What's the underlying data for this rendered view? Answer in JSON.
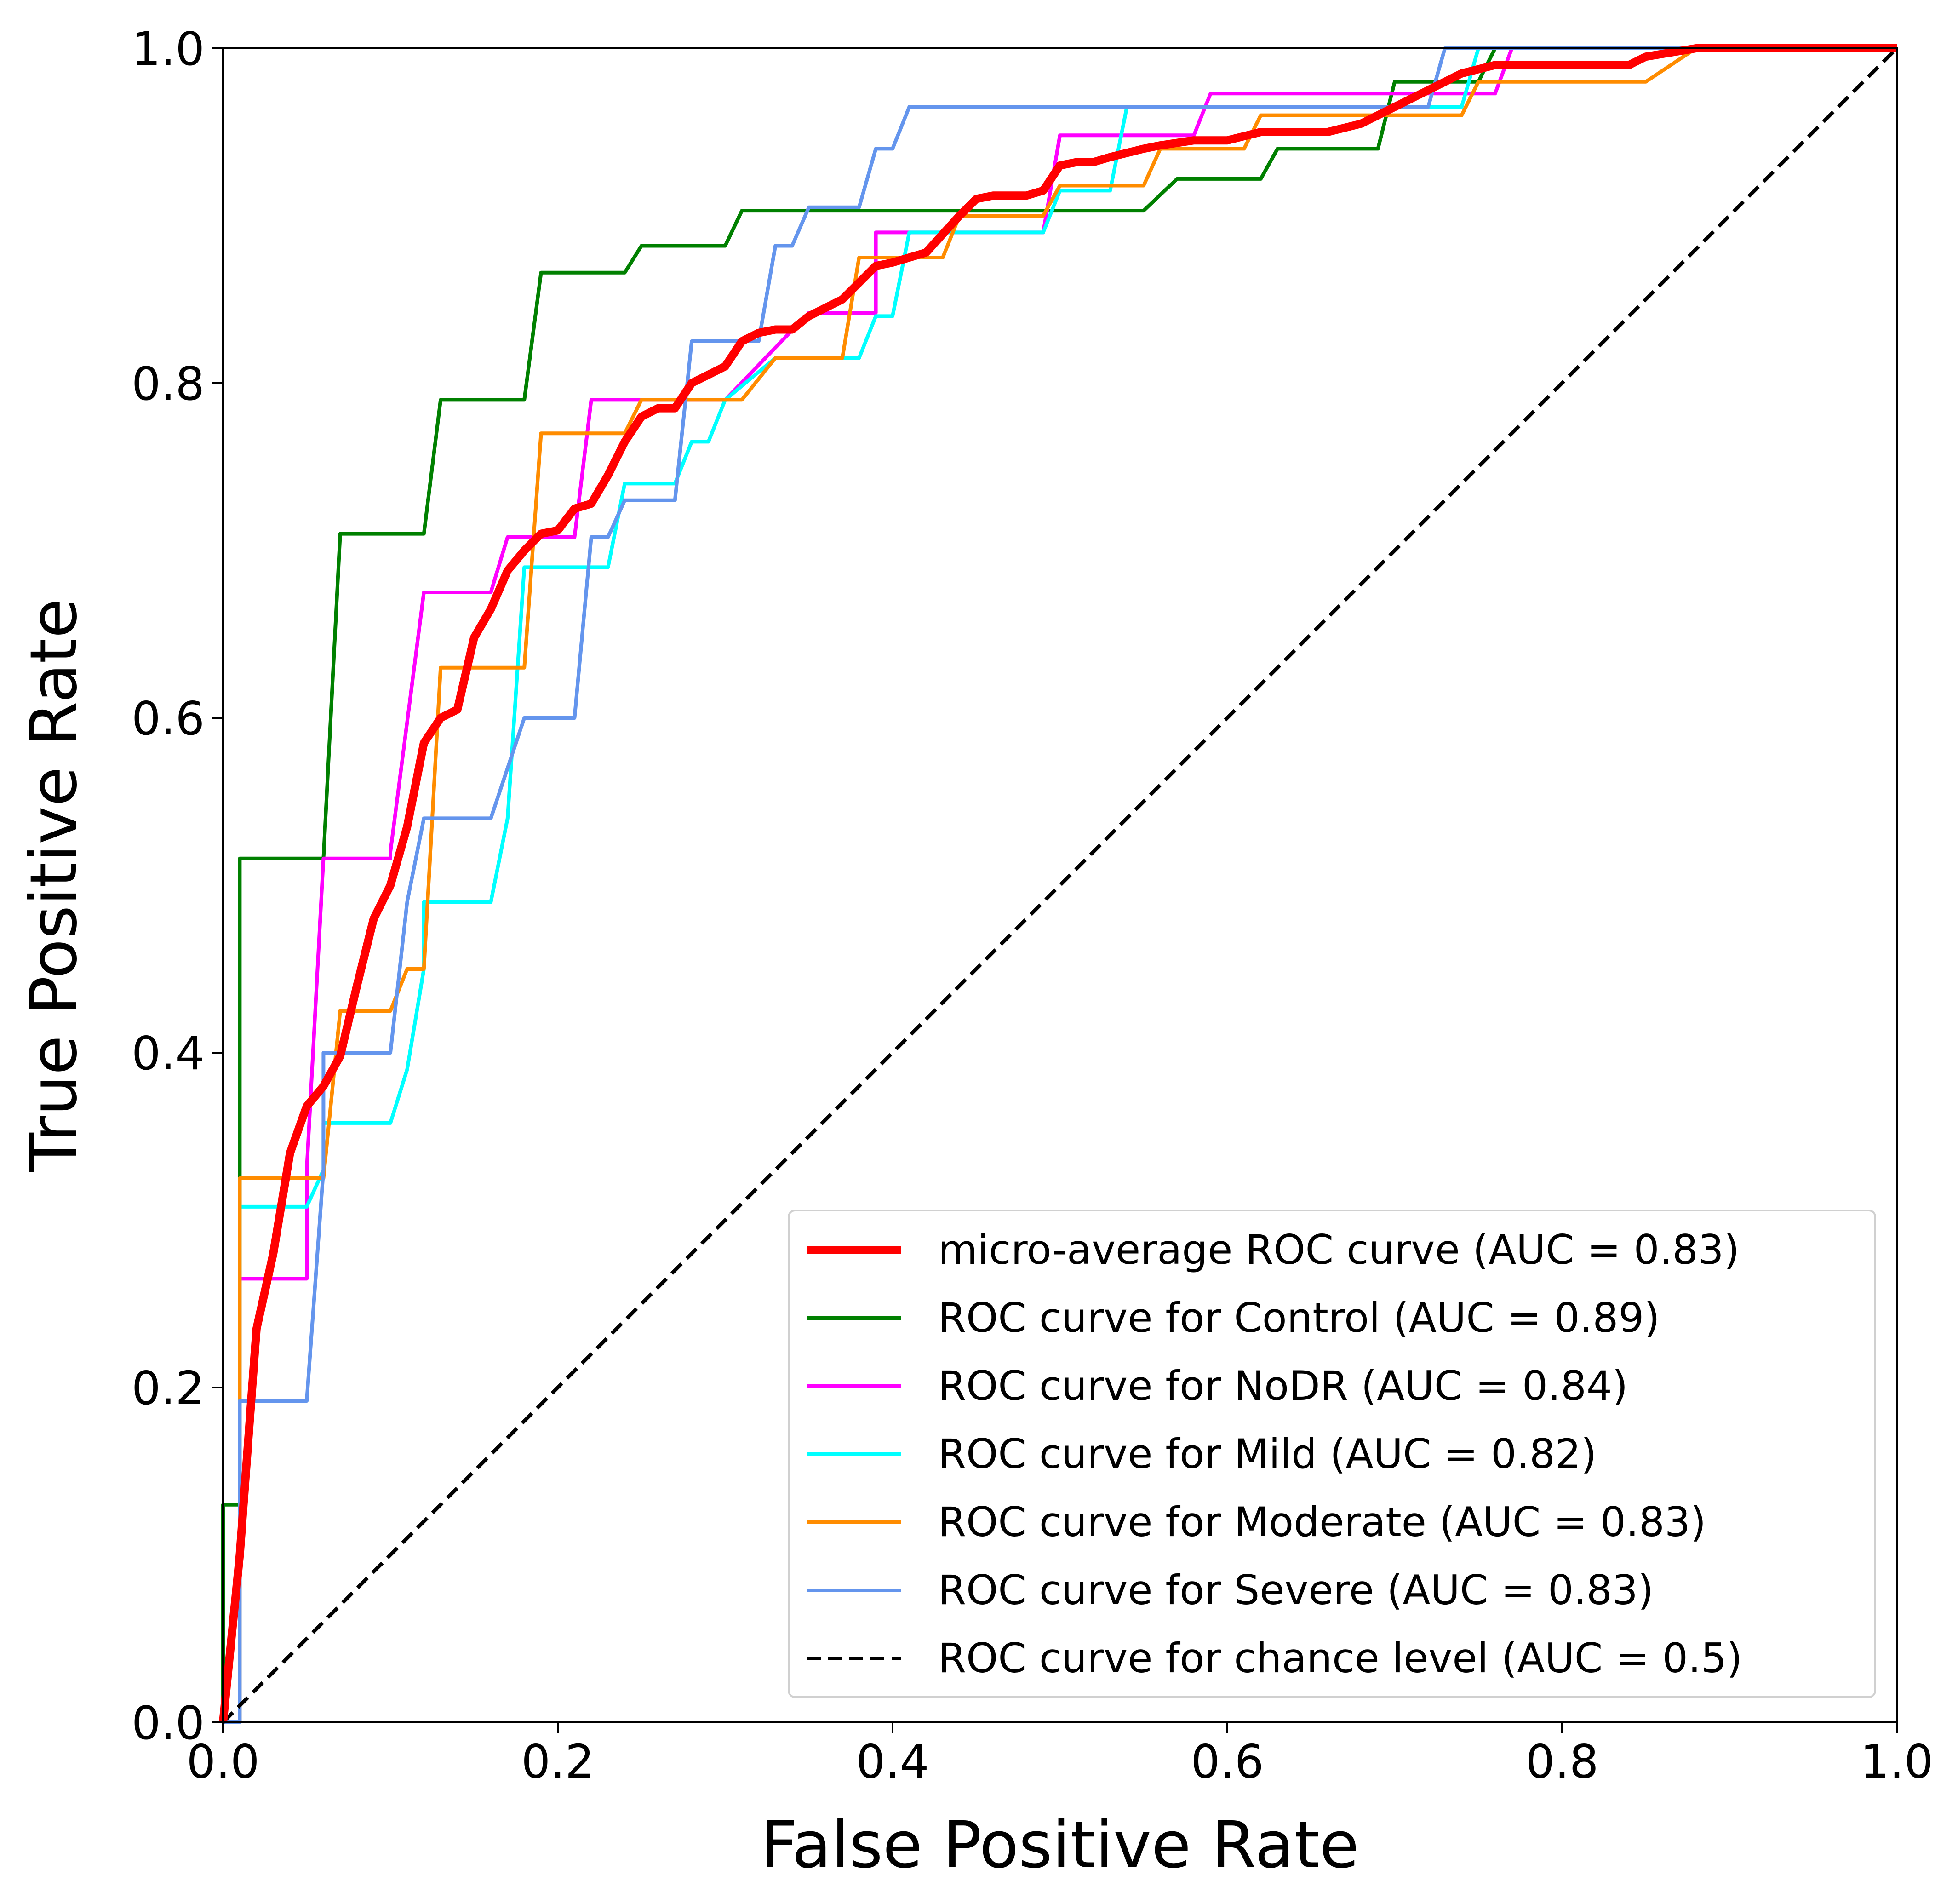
{
  "chart_data": {
    "type": "line",
    "title": "",
    "xlabel": "False Positive Rate",
    "ylabel": "True Positive Rate",
    "xlim": [
      0.0,
      1.0
    ],
    "ylim": [
      0.0,
      1.0
    ],
    "xticks": [
      "0.0",
      "0.2",
      "0.4",
      "0.6",
      "0.8",
      "1.0"
    ],
    "yticks": [
      "0.0",
      "0.2",
      "0.4",
      "0.6",
      "0.8",
      "1.0"
    ],
    "grid": false,
    "legend_position": "bottom-right",
    "series": [
      {
        "name": "micro-average ROC curve (AUC = 0.83)",
        "color": "#ff0000",
        "style": "solid-thick",
        "x": [
          0.0,
          0.01,
          0.02,
          0.03,
          0.04,
          0.05,
          0.06,
          0.07,
          0.08,
          0.09,
          0.1,
          0.11,
          0.12,
          0.13,
          0.14,
          0.15,
          0.16,
          0.17,
          0.18,
          0.19,
          0.2,
          0.21,
          0.22,
          0.23,
          0.24,
          0.25,
          0.26,
          0.27,
          0.28,
          0.29,
          0.3,
          0.31,
          0.32,
          0.33,
          0.34,
          0.35,
          0.36,
          0.37,
          0.38,
          0.39,
          0.4,
          0.42,
          0.44,
          0.45,
          0.46,
          0.48,
          0.49,
          0.5,
          0.51,
          0.52,
          0.53,
          0.55,
          0.56,
          0.58,
          0.6,
          0.62,
          0.64,
          0.66,
          0.68,
          0.7,
          0.72,
          0.74,
          0.76,
          0.8,
          0.84,
          0.85,
          0.88,
          1.0
        ],
        "y": [
          0.0,
          0.1,
          0.235,
          0.28,
          0.34,
          0.368,
          0.38,
          0.398,
          0.44,
          0.48,
          0.5,
          0.535,
          0.585,
          0.6,
          0.605,
          0.648,
          0.665,
          0.688,
          0.7,
          0.71,
          0.712,
          0.725,
          0.728,
          0.745,
          0.765,
          0.78,
          0.785,
          0.785,
          0.8,
          0.805,
          0.81,
          0.825,
          0.83,
          0.832,
          0.832,
          0.84,
          0.845,
          0.85,
          0.86,
          0.87,
          0.872,
          0.878,
          0.9,
          0.91,
          0.912,
          0.912,
          0.915,
          0.93,
          0.932,
          0.932,
          0.935,
          0.94,
          0.942,
          0.945,
          0.945,
          0.95,
          0.95,
          0.95,
          0.955,
          0.965,
          0.975,
          0.985,
          0.99,
          0.99,
          0.99,
          0.995,
          1.0,
          1.0
        ]
      },
      {
        "name": "ROC curve for Control (AUC = 0.89)",
        "color": "#008000",
        "style": "solid",
        "x": [
          0.0,
          0.0,
          0.01,
          0.01,
          0.06,
          0.07,
          0.12,
          0.13,
          0.18,
          0.19,
          0.24,
          0.25,
          0.3,
          0.31,
          0.55,
          0.57,
          0.62,
          0.63,
          0.69,
          0.7,
          0.73,
          0.75,
          0.76,
          1.0
        ],
        "y": [
          0.0,
          0.13,
          0.13,
          0.516,
          0.516,
          0.71,
          0.71,
          0.79,
          0.79,
          0.866,
          0.866,
          0.882,
          0.882,
          0.903,
          0.903,
          0.922,
          0.922,
          0.94,
          0.94,
          0.98,
          0.98,
          0.98,
          1.0,
          1.0
        ]
      },
      {
        "name": "ROC curve for NoDR (AUC = 0.84)",
        "color": "#ff00ff",
        "style": "solid",
        "x": [
          0.0,
          0.01,
          0.01,
          0.05,
          0.05,
          0.06,
          0.1,
          0.1,
          0.12,
          0.16,
          0.17,
          0.21,
          0.22,
          0.3,
          0.35,
          0.39,
          0.39,
          0.49,
          0.5,
          0.58,
          0.59,
          0.76,
          0.77,
          1.0
        ],
        "y": [
          0.0,
          0.0,
          0.265,
          0.265,
          0.33,
          0.516,
          0.516,
          0.52,
          0.675,
          0.675,
          0.708,
          0.708,
          0.79,
          0.79,
          0.842,
          0.842,
          0.89,
          0.89,
          0.948,
          0.948,
          0.973,
          0.973,
          1.0,
          1.0
        ]
      },
      {
        "name": "ROC curve for Mild (AUC = 0.82)",
        "color": "#00ffff",
        "style": "solid",
        "x": [
          0.0,
          0.01,
          0.01,
          0.05,
          0.06,
          0.06,
          0.1,
          0.11,
          0.12,
          0.12,
          0.16,
          0.17,
          0.18,
          0.18,
          0.23,
          0.24,
          0.27,
          0.28,
          0.29,
          0.3,
          0.33,
          0.38,
          0.39,
          0.4,
          0.41,
          0.42,
          0.49,
          0.5,
          0.53,
          0.54,
          0.74,
          0.75,
          1.0
        ],
        "y": [
          0.0,
          0.0,
          0.308,
          0.308,
          0.33,
          0.358,
          0.358,
          0.39,
          0.45,
          0.49,
          0.49,
          0.54,
          0.69,
          0.69,
          0.69,
          0.74,
          0.74,
          0.765,
          0.765,
          0.79,
          0.815,
          0.815,
          0.84,
          0.84,
          0.89,
          0.89,
          0.89,
          0.915,
          0.915,
          0.965,
          0.965,
          1.0,
          1.0
        ]
      },
      {
        "name": "ROC curve for Moderate (AUC = 0.83)",
        "color": "#ff8c00",
        "style": "solid",
        "x": [
          0.0,
          0.01,
          0.01,
          0.06,
          0.07,
          0.1,
          0.11,
          0.12,
          0.13,
          0.18,
          0.19,
          0.24,
          0.25,
          0.31,
          0.33,
          0.37,
          0.38,
          0.43,
          0.44,
          0.49,
          0.5,
          0.55,
          0.56,
          0.61,
          0.62,
          0.74,
          0.75,
          0.85,
          0.88,
          1.0
        ],
        "y": [
          0.0,
          0.0,
          0.325,
          0.325,
          0.425,
          0.425,
          0.45,
          0.45,
          0.63,
          0.63,
          0.77,
          0.77,
          0.79,
          0.79,
          0.815,
          0.815,
          0.875,
          0.875,
          0.9,
          0.9,
          0.918,
          0.918,
          0.94,
          0.94,
          0.96,
          0.96,
          0.98,
          0.98,
          1.0,
          1.0
        ]
      },
      {
        "name": "ROC curve for Severe (AUC = 0.83)",
        "color": "#6495ed",
        "style": "solid",
        "x": [
          0.0,
          0.01,
          0.01,
          0.05,
          0.06,
          0.06,
          0.1,
          0.11,
          0.12,
          0.12,
          0.16,
          0.18,
          0.18,
          0.21,
          0.22,
          0.23,
          0.24,
          0.27,
          0.28,
          0.32,
          0.33,
          0.34,
          0.35,
          0.38,
          0.39,
          0.4,
          0.41,
          0.42,
          0.72,
          0.73,
          1.0
        ],
        "y": [
          0.0,
          0.0,
          0.192,
          0.192,
          0.33,
          0.4,
          0.4,
          0.49,
          0.54,
          0.54,
          0.54,
          0.6,
          0.6,
          0.6,
          0.708,
          0.708,
          0.73,
          0.73,
          0.825,
          0.825,
          0.882,
          0.882,
          0.905,
          0.905,
          0.94,
          0.94,
          0.965,
          0.965,
          0.965,
          1.0,
          1.0
        ]
      },
      {
        "name": "ROC curve for chance level (AUC = 0.5)",
        "color": "#000000",
        "style": "dashed",
        "x": [
          0.0,
          1.0
        ],
        "y": [
          0.0,
          1.0
        ]
      }
    ]
  }
}
